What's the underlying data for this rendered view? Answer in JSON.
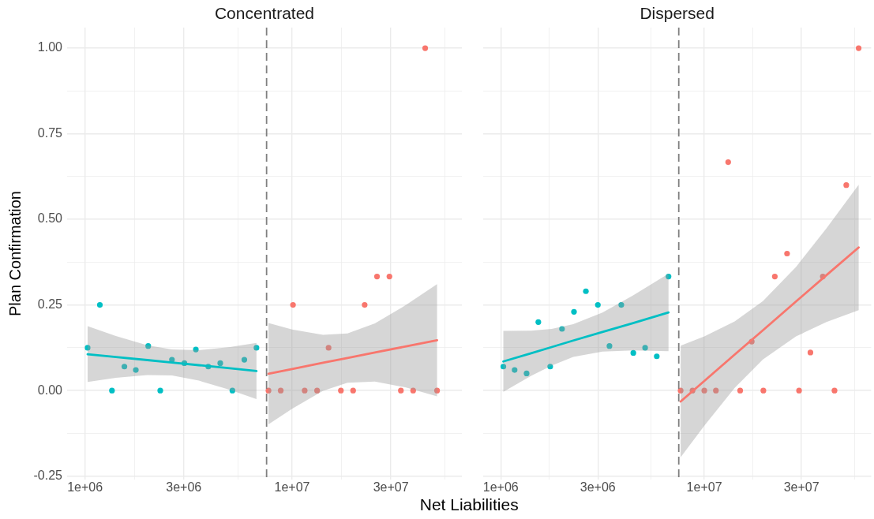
{
  "chart_data": [
    {
      "type": "scatter",
      "title": "Concentrated",
      "xlabel": "Net Liabilities",
      "ylabel": "Plan Confirmation",
      "log": "x",
      "grid": true,
      "marker": "circle",
      "xlim": [
        820000,
        66000000
      ],
      "xticks": [
        {
          "value": 1000000,
          "label": "1e+06"
        },
        {
          "value": 1730000,
          "label": null
        },
        {
          "value": 3000000,
          "label": "3e+06"
        },
        {
          "value": 5480000,
          "label": null
        },
        {
          "value": 10000000,
          "label": "1e+07"
        },
        {
          "value": 17300000,
          "label": null
        },
        {
          "value": 30000000,
          "label": "3e+07"
        },
        {
          "value": 54800000,
          "label": null
        }
      ],
      "ylim": [
        -0.26,
        1.06
      ],
      "yticks": [
        -0.25,
        {
          "value": -0.125,
          "label": null
        },
        {
          "value": 0,
          "label": "0.00"
        },
        {
          "value": 0.125,
          "label": null
        },
        0.25,
        {
          "value": 0.375,
          "label": null
        },
        {
          "value": 0.5,
          "label": "0.50"
        },
        {
          "value": 0.625,
          "label": null
        },
        0.75,
        {
          "value": 0.875,
          "label": null
        },
        {
          "value": 1,
          "label": "1.00"
        }
      ],
      "ref_lines": [
        {
          "axis": "x",
          "value": 7530000,
          "color": "#808080",
          "line_style": "dashed"
        }
      ],
      "series": [
        {
          "type": "scatter",
          "color": "#00bfc4",
          "x": [
            1030000,
            1180000,
            1350000,
            1550000,
            1760000,
            2020000,
            2310000,
            2630000,
            3020000,
            3430000,
            3940000,
            4500000,
            5150000,
            5880000,
            6730000
          ],
          "values": [
            0.125,
            0.25,
            0,
            0.07,
            0.06,
            0.13,
            0,
            0.09,
            0.08,
            0.12,
            0.07,
            0.08,
            0,
            0.09,
            0.125
          ]
        },
        {
          "type": "scatter",
          "color": "#f8766d",
          "x": [
            7690000,
            8810000,
            10100000,
            11500000,
            13200000,
            15000000,
            17200000,
            19700000,
            22400000,
            25700000,
            29500000,
            33500000,
            38400000,
            43900000,
            50100000
          ],
          "values": [
            0,
            0,
            0.25,
            0,
            0,
            0.125,
            0,
            0,
            0.25,
            0.333,
            0.333,
            0,
            0,
            1,
            0
          ]
        },
        {
          "type": "line",
          "marker": "none",
          "color": "#00bfc4",
          "x": [
            1030000,
            1410000,
            2000000,
            2630000,
            3550000,
            5010000,
            6730000
          ],
          "values": [
            0.106,
            0.098,
            0.089,
            0.082,
            0.074,
            0.065,
            0.057
          ],
          "lower": [
            0.025,
            0.037,
            0.045,
            0.044,
            0.029,
            0.002,
            -0.025
          ],
          "upper": [
            0.188,
            0.159,
            0.132,
            0.12,
            0.118,
            0.127,
            0.139
          ]
        },
        {
          "type": "line",
          "marker": "none",
          "color": "#f8766d",
          "x": [
            7690000,
            10000000,
            14100000,
            18500000,
            25100000,
            35500000,
            50100000
          ],
          "values": [
            0.049,
            0.063,
            0.081,
            0.095,
            0.111,
            0.129,
            0.147
          ],
          "lower": [
            -0.099,
            -0.053,
            -0.001,
            0.023,
            0.026,
            0.009,
            -0.017
          ],
          "upper": [
            0.197,
            0.178,
            0.163,
            0.167,
            0.196,
            0.25,
            0.311
          ]
        }
      ]
    },
    {
      "type": "scatter",
      "title": "Dispersed",
      "log": "x",
      "grid": true,
      "marker": "circle",
      "tick_labels": "x",
      "xlim": [
        820000,
        66000000
      ],
      "xticks": [
        {
          "value": 1000000,
          "label": "1e+06"
        },
        {
          "value": 1730000,
          "label": null
        },
        {
          "value": 3000000,
          "label": "3e+06"
        },
        {
          "value": 5480000,
          "label": null
        },
        {
          "value": 10000000,
          "label": "1e+07"
        },
        {
          "value": 17300000,
          "label": null
        },
        {
          "value": 30000000,
          "label": "3e+07"
        },
        {
          "value": 54800000,
          "label": null
        }
      ],
      "ylim": [
        -0.26,
        1.06
      ],
      "yticks": [
        -0.25,
        {
          "value": -0.125,
          "label": null
        },
        0,
        {
          "value": 0.125,
          "label": null
        },
        0.25,
        {
          "value": 0.375,
          "label": null
        },
        0.5,
        {
          "value": 0.625,
          "label": null
        },
        0.75,
        {
          "value": 0.875,
          "label": null
        },
        1
      ],
      "ref_lines": [
        {
          "axis": "x",
          "value": 7490000,
          "color": "#808080",
          "line_style": "dashed"
        }
      ],
      "series": [
        {
          "type": "scatter",
          "color": "#00bfc4",
          "x": [
            1030000,
            1170000,
            1340000,
            1530000,
            1750000,
            2000000,
            2290000,
            2620000,
            3000000,
            3420000,
            3910000,
            4480000,
            5120000,
            5840000,
            6670000
          ],
          "values": [
            0.07,
            0.06,
            0.05,
            0.2,
            0.07,
            0.18,
            0.23,
            0.29,
            0.25,
            0.13,
            0.25,
            0.11,
            0.125,
            0.1,
            0.333
          ]
        },
        {
          "type": "scatter",
          "color": "#f8766d",
          "x": [
            7650000,
            8750000,
            10000000,
            11400000,
            13100000,
            15000000,
            17100000,
            19500000,
            22200000,
            25500000,
            29200000,
            33200000,
            38200000,
            43600000,
            49800000,
            57300000
          ],
          "values": [
            0,
            0,
            0,
            0,
            0.667,
            0,
            0.143,
            0,
            0.333,
            0.4,
            0,
            0.111,
            0.333,
            0,
            0.6,
            1
          ]
        },
        {
          "type": "line",
          "marker": "none",
          "color": "#00bfc4",
          "x": [
            1030000,
            1410000,
            1780000,
            2270000,
            3160000,
            4470000,
            6670000
          ],
          "values": [
            0.085,
            0.109,
            0.127,
            0.146,
            0.171,
            0.197,
            0.228
          ],
          "lower": [
            -0.004,
            0.043,
            0.073,
            0.098,
            0.114,
            0.117,
            0.115
          ],
          "upper": [
            0.174,
            0.175,
            0.18,
            0.194,
            0.228,
            0.278,
            0.341
          ]
        },
        {
          "type": "line",
          "marker": "none",
          "color": "#f8766d",
          "x": [
            7650000,
            10000000,
            14100000,
            19400000,
            28200000,
            39800000,
            57300000
          ],
          "values": [
            -0.032,
            0.028,
            0.105,
            0.176,
            0.26,
            0.337,
            0.418
          ],
          "lower": [
            -0.195,
            -0.103,
            0.008,
            0.091,
            0.158,
            0.2,
            0.235
          ],
          "upper": [
            0.131,
            0.158,
            0.202,
            0.261,
            0.361,
            0.474,
            0.601
          ]
        }
      ]
    }
  ]
}
